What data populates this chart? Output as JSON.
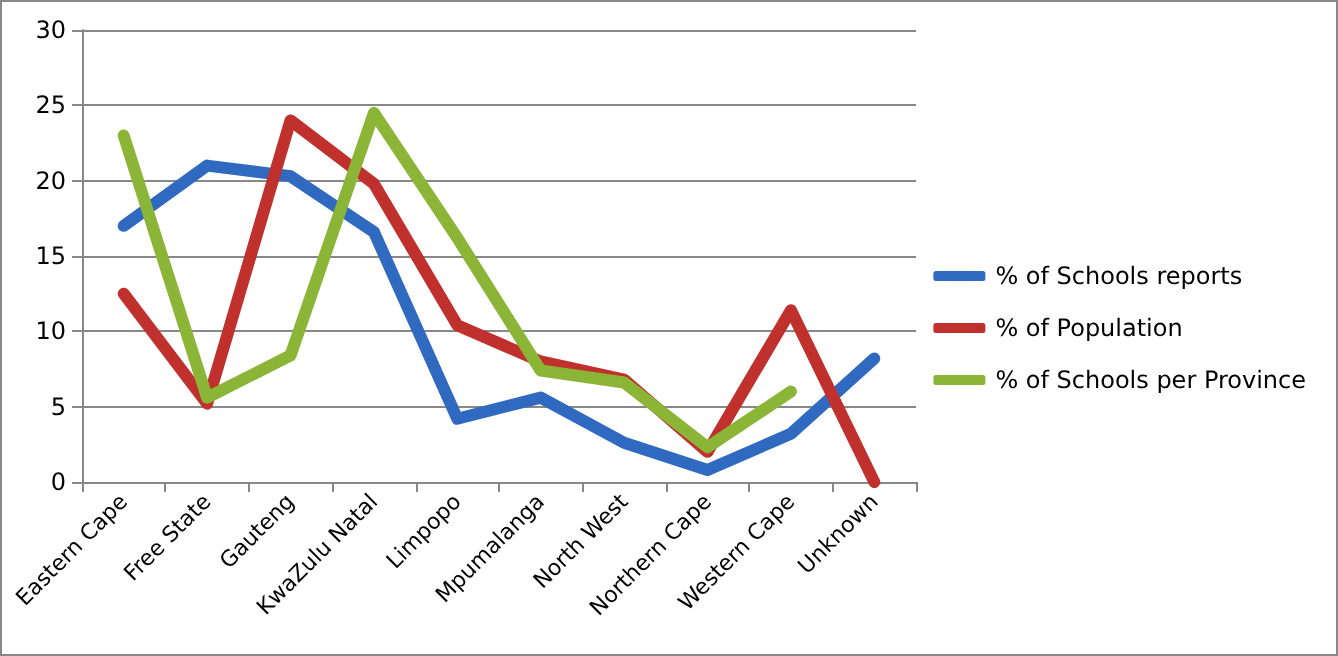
{
  "chart_data": {
    "type": "line",
    "categories": [
      "Eastern Cape",
      "Free State",
      "Gauteng",
      "KwaZulu Natal",
      "Limpopo",
      "Mpumalanga",
      "North West",
      "Northern Cape",
      "Western Cape",
      "Unknown"
    ],
    "series": [
      {
        "name": "% of Schools reports",
        "color": "#3069c0",
        "values": [
          17,
          21,
          20.3,
          16.6,
          4.2,
          5.6,
          2.6,
          0.8,
          3.2,
          8.2
        ]
      },
      {
        "name": "% of Population",
        "color": "#c0302c",
        "values": [
          12.5,
          5.2,
          24,
          19.8,
          10.4,
          8,
          6.8,
          2,
          11.4,
          0
        ]
      },
      {
        "name": "% of Schools per Province",
        "color": "#8ab536",
        "values": [
          23,
          5.6,
          8.4,
          24.5,
          16.2,
          7.4,
          6.6,
          2.3,
          6,
          null
        ]
      }
    ],
    "ylim": [
      0,
      30
    ],
    "yticks": [
      0,
      5,
      10,
      15,
      20,
      25,
      30
    ],
    "grid": "y",
    "legend": "right",
    "marker": "none",
    "line_style": "solid"
  }
}
